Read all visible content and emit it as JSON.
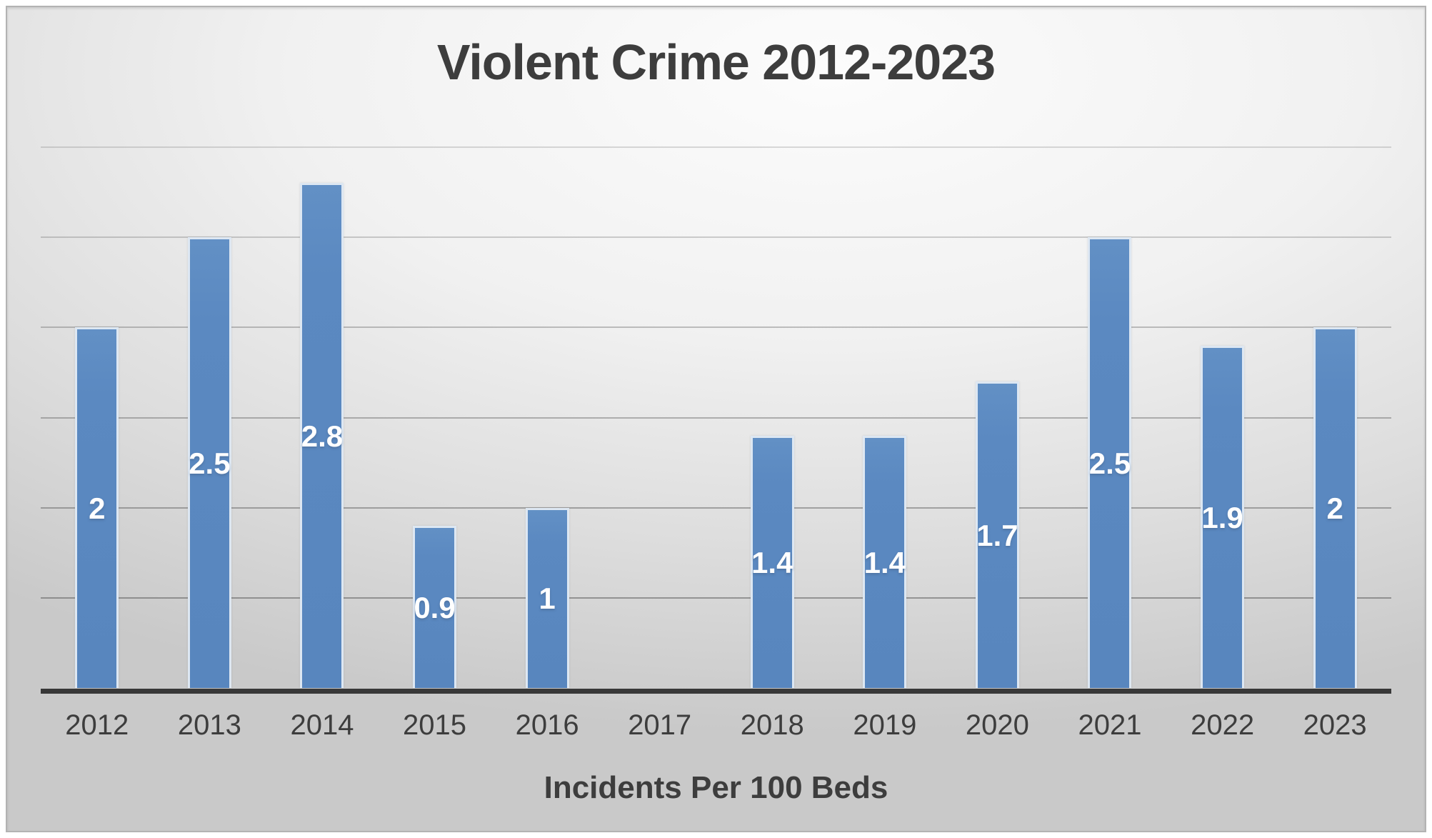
{
  "chart_data": {
    "type": "bar",
    "title": "Violent Crime 2012-2023",
    "xlabel": "Incidents Per 100 Beds",
    "ylabel": "",
    "categories": [
      "2012",
      "2013",
      "2014",
      "2015",
      "2016",
      "2017",
      "2018",
      "2019",
      "2020",
      "2021",
      "2022",
      "2023"
    ],
    "values": [
      2,
      2.5,
      2.8,
      0.9,
      1,
      null,
      1.4,
      1.4,
      1.7,
      2.5,
      1.9,
      2
    ],
    "value_labels": [
      "2",
      "2.5",
      "2.8",
      "0.9",
      "1",
      "",
      "1.4",
      "1.4",
      "1.7",
      "2.5",
      "1.9",
      "2"
    ],
    "ylim": [
      0,
      3
    ],
    "grid_step": 0.5,
    "grid": true,
    "legend_position": "none",
    "y_tick_labels_visible": false,
    "colors": {
      "bar_fill": "#5b89c1",
      "bar_border": "#dde7f2",
      "value_label_text": "#ffffff",
      "gridline": "#5f5f5f",
      "axis_line": "#383838",
      "text": "#3d3d3d",
      "background_light": "#fcfcfc",
      "background_dark": "#c9c9c9"
    }
  }
}
